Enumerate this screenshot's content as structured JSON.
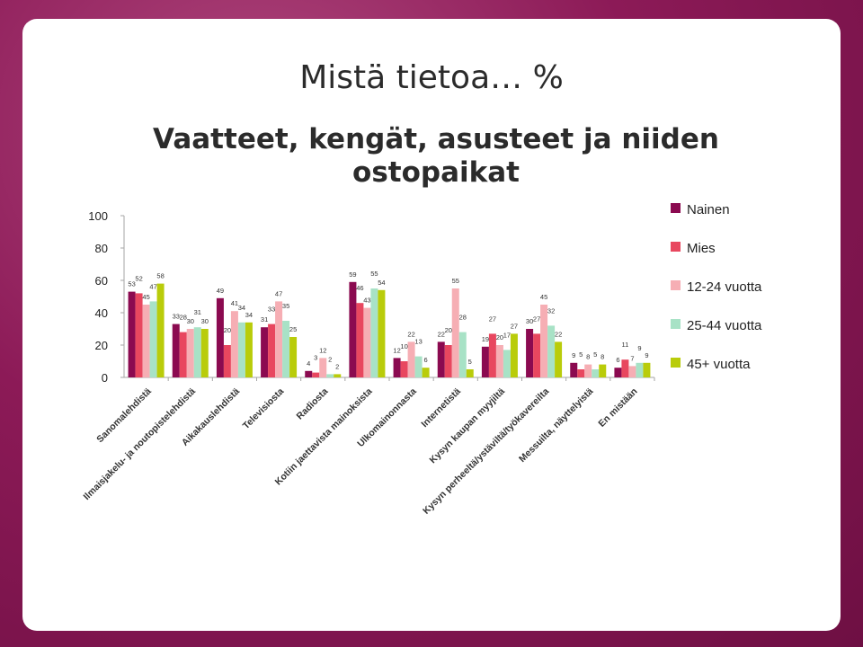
{
  "page": {
    "heading": "Mistä tietoa… %",
    "subheading": "Vaatteet, kengät, asusteet ja niiden ostopaikat"
  },
  "chart_data": {
    "type": "bar",
    "title": "Vaatteet, kengät, asusteet ja niiden ostopaikat",
    "xlabel": "",
    "ylabel": "",
    "ylim": [
      0,
      100
    ],
    "yticks": [
      0,
      20,
      40,
      60,
      80,
      100
    ],
    "grid": false,
    "legend_position": "right",
    "categories": [
      "Sanomalehdistä",
      "Ilmaisjakelu- ja noutopistelehdistä",
      "Aikakauslehdistä",
      "Televisiosta",
      "Radiosta",
      "Kotiin jaettavista mainoksista",
      "Ulkomainonnasta",
      "Internetistä",
      "Kysyn kaupan myyjiltä",
      "Kysyn perheeltä/ystäviltä/työkavereilta",
      "Messuilta, näyttelyistä",
      "En mistään"
    ],
    "series": [
      {
        "name": "Nainen",
        "color": "#8b0a50",
        "values": [
          53,
          33,
          49,
          31,
          4,
          59,
          12,
          22,
          19,
          30,
          9,
          6
        ]
      },
      {
        "name": "Mies",
        "color": "#e8475f",
        "values": [
          52,
          28,
          20,
          33,
          3,
          46,
          10,
          20,
          27,
          27,
          5,
          11
        ]
      },
      {
        "name": "12-24 vuotta",
        "color": "#f6aeb4",
        "values": [
          45,
          30,
          41,
          47,
          12,
          43,
          22,
          55,
          20,
          45,
          8,
          7
        ]
      },
      {
        "name": "25-44 vuotta",
        "color": "#a8e2c6",
        "values": [
          47,
          31,
          34,
          35,
          2,
          55,
          13,
          28,
          17,
          32,
          5,
          9
        ]
      },
      {
        "name": "45+ vuotta",
        "color": "#b9cc0a",
        "values": [
          58,
          30,
          34,
          25,
          2,
          54,
          6,
          5,
          27,
          22,
          8,
          9
        ]
      }
    ]
  }
}
